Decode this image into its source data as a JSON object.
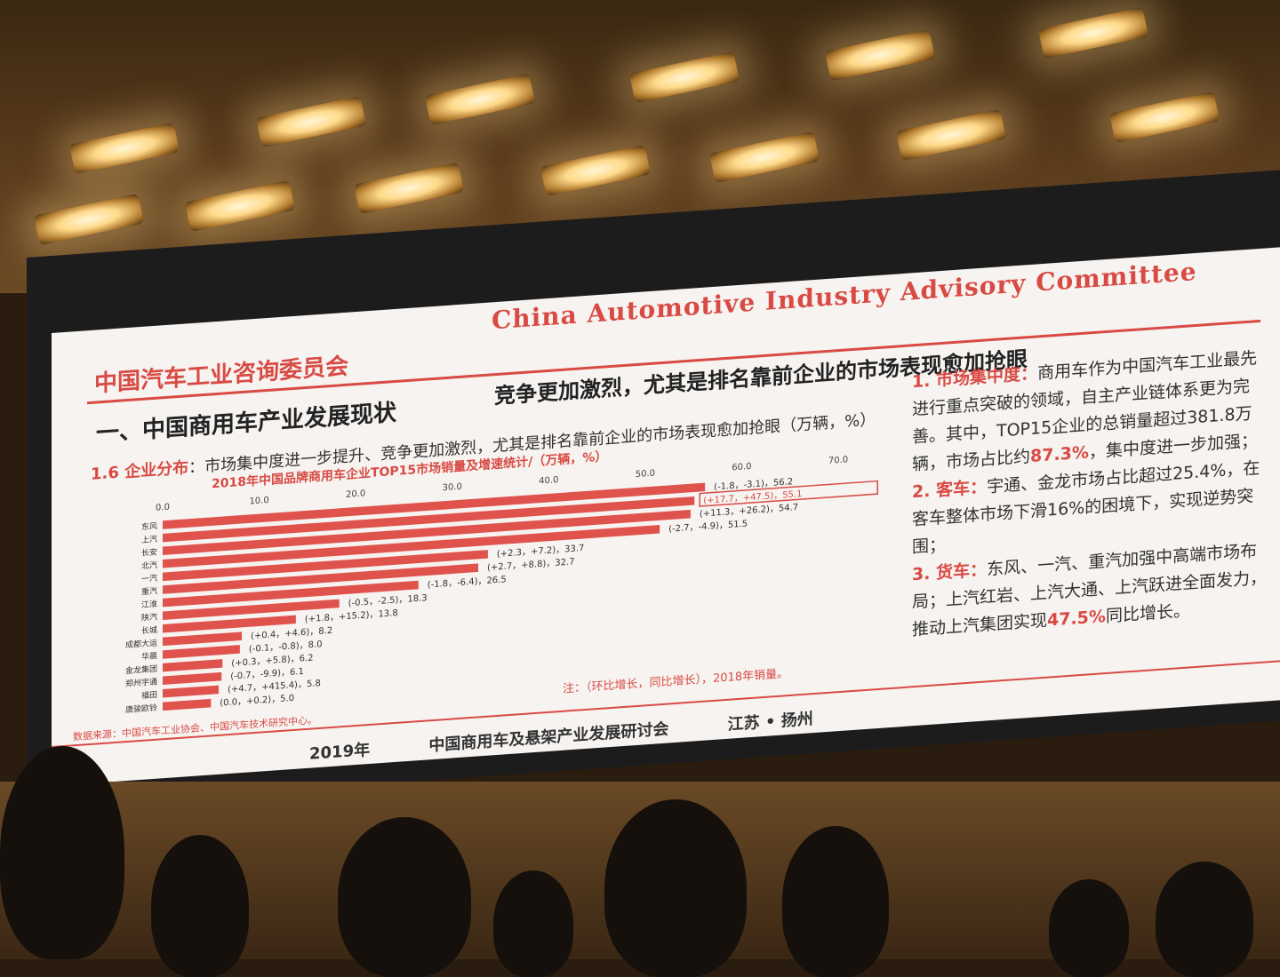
{
  "slide": {
    "header_cn": "中国汽车工业咨询委员会",
    "header_en": "China Automotive Industry Advisory Committee",
    "section_title": "一、中国商用车产业发展现状",
    "headline": "竞争更加激烈，尤其是排名靠前企业的市场表现愈加抢眼",
    "subtitle_prefix": "1.6 企业分布",
    "subtitle_rest": "：市场集中度进一步提升、竞争更加激烈，尤其是排名靠前企业的市场表现愈加抢眼",
    "unit_note": "（万辆，%）",
    "chart_title": "2018年中国品牌商用车企业TOP15市场销量及增速统计/（万辆，%）",
    "source": "数据来源：中国汽车工业协会、中国汽车技术研究中心。",
    "chart_note": "注：（环比增长，同比增长），2018年销量。",
    "footer": [
      "2019年",
      "中国商用车及悬架产业发展研讨会",
      "江苏 • 扬州"
    ]
  },
  "notes": [
    {
      "label": "1. 市场集中度：",
      "text": "商用车作为中国汽车工业最先进行重点突破的领域，自主产业链体系更为完善。其中，TOP15企业的总销量超过381.8万辆，市场占比约",
      "highlight": "87.3%",
      "tail": "，集中度进一步加强；"
    },
    {
      "label": "2. 客车：",
      "text": "宇通、金龙市场占比超过25.4%，在客车整体市场下滑16%的困境下，实现逆势突围；",
      "highlight": "",
      "tail": ""
    },
    {
      "label": "3. 货车：",
      "text": "东风、一汽、重汽加强中高端市场布局；上汽红岩、上汽大通、上汽跃进全面发力，推动上汽集团实现",
      "highlight": "47.5%",
      "tail": "同比增长。"
    }
  ],
  "colors": {
    "accent": "#d94a44",
    "bar": "#e0524c",
    "slide_bg": "#f6f3f0"
  },
  "chart_data": {
    "type": "bar",
    "orientation": "horizontal",
    "title": "2018年中国品牌商用车企业TOP15市场销量及增速统计/（万辆，%）",
    "xlim": [
      0,
      70
    ],
    "ticks": [
      "0.0",
      "10.0",
      "20.0",
      "30.0",
      "40.0",
      "50.0",
      "60.0",
      "70.0"
    ],
    "categories": [
      "东风",
      "上汽",
      "长安",
      "北汽",
      "一汽",
      "重汽",
      "江淮",
      "陕汽",
      "长城",
      "成都大运",
      "华晨",
      "金龙集团",
      "郑州宇通",
      "福田",
      "唐骏欧铃"
    ],
    "values": [
      56.2,
      55.1,
      54.7,
      51.5,
      33.7,
      32.7,
      26.5,
      18.3,
      13.8,
      8.2,
      8.0,
      6.2,
      6.1,
      5.8,
      5.0
    ],
    "labels": [
      "(-1.8，-3.1)，56.2",
      "(+17.7，+47.5)，55.1",
      "(+11.3，+26.2)，54.7",
      "(-2.7，-4.9)，51.5",
      "(+2.3，+7.2)，33.7",
      "(+2.7，+8.8)，32.7",
      "(-1.8，-6.4)，26.5",
      "(-0.5，-2.5)，18.3",
      "(+1.8，+15.2)，13.8",
      "(+0.4，+4.6)，8.2",
      "(-0.1，-0.8)，8.0",
      "(+0.3，+5.8)，6.2",
      "(-0.7，-9.9)，6.1",
      "(+4.7，+415.4)，5.8",
      "(0.0，+0.2)，5.0"
    ],
    "highlighted_index": 1
  }
}
